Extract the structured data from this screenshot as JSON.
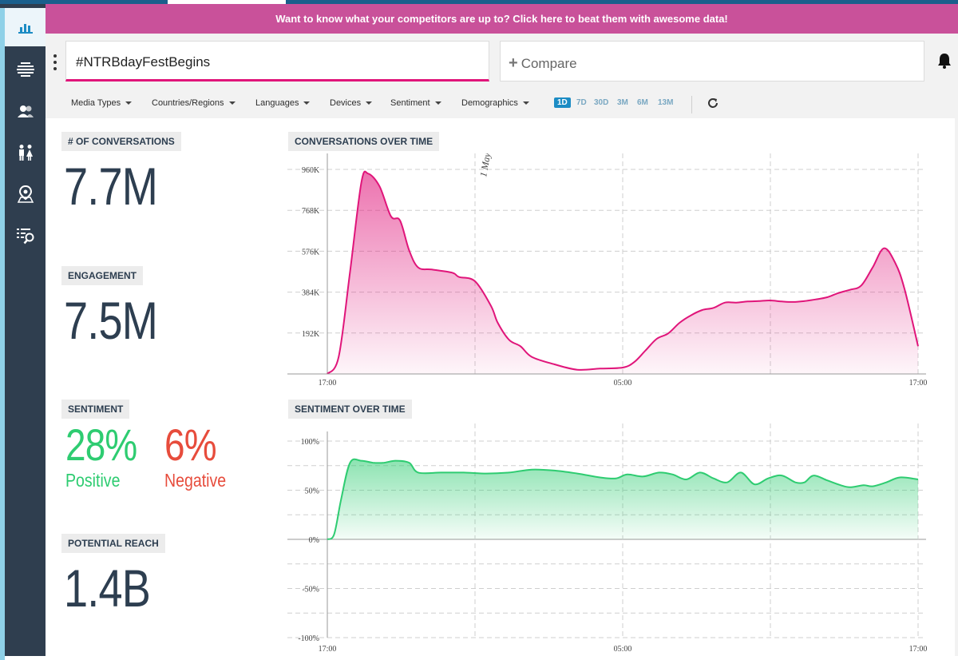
{
  "banner": {
    "text": "Want to know what your competitors are up to? Click here to beat them with awesome data!"
  },
  "search": {
    "query": "#NTRBdayFestBegins",
    "compare_label": "Compare"
  },
  "sidebar": {
    "items": [
      {
        "name": "analytics",
        "icon": "bar-chart-icon",
        "active": true
      },
      {
        "name": "streams",
        "icon": "streams-icon",
        "active": false
      },
      {
        "name": "influencers",
        "icon": "users-icon",
        "active": false
      },
      {
        "name": "demographics",
        "icon": "people-icon",
        "active": false
      },
      {
        "name": "locations",
        "icon": "map-pin-icon",
        "active": false
      },
      {
        "name": "search-list",
        "icon": "list-search-icon",
        "active": false
      }
    ]
  },
  "filters": {
    "media_types": "Media Types",
    "countries": "Countries/Regions",
    "languages": "Languages",
    "devices": "Devices",
    "sentiment": "Sentiment",
    "demographics": "Demographics"
  },
  "ranges": {
    "r1d": "1D",
    "r7d": "7D",
    "r30d": "30D",
    "r3m": "3M",
    "r6m": "6M",
    "r13m": "13M",
    "active": "1D"
  },
  "metrics": {
    "conversations_label": "# OF CONVERSATIONS",
    "conversations_value": "7.7M",
    "engagement_label": "ENGAGEMENT",
    "engagement_value": "7.5M",
    "sentiment_label": "SENTIMENT",
    "positive_value": "28%",
    "positive_label": "Positive",
    "negative_value": "6%",
    "negative_label": "Negative",
    "reach_label": "POTENTIAL REACH",
    "reach_value": "1.4B"
  },
  "colors": {
    "sidebar": "#2f3e4f",
    "banner": "#c9519a",
    "conversations": "#e0157a",
    "positive": "#2ecc71",
    "negative": "#e74c3c",
    "active_range": "#1c8cc4"
  },
  "chart_data": [
    {
      "type": "area",
      "title": "CONVERSATIONS OVER TIME",
      "x_ticks": [
        "17:00",
        "05:00",
        "17:00"
      ],
      "y_ticks": [
        "192K",
        "384K",
        "576K",
        "768K",
        "960K"
      ],
      "ylim": [
        0,
        960
      ],
      "annotation": "1 May",
      "series": [
        {
          "values": [
            [
              0.0,
              0
            ],
            [
              0.5,
              80
            ],
            [
              1.0,
              480
            ],
            [
              1.5,
              900
            ],
            [
              1.8,
              940
            ],
            [
              2.3,
              880
            ],
            [
              2.8,
              740
            ],
            [
              3.2,
              720
            ],
            [
              3.6,
              580
            ],
            [
              4.0,
              500
            ],
            [
              4.6,
              490
            ],
            [
              5.5,
              475
            ],
            [
              5.8,
              455
            ],
            [
              6.5,
              435
            ],
            [
              7.2,
              320
            ],
            [
              7.5,
              240
            ],
            [
              8.0,
              160
            ],
            [
              8.5,
              130
            ],
            [
              9.0,
              80
            ],
            [
              10.0,
              45
            ],
            [
              11.0,
              20
            ],
            [
              12.0,
              25
            ],
            [
              13.0,
              30
            ],
            [
              13.5,
              55
            ],
            [
              14.0,
              110
            ],
            [
              14.5,
              165
            ],
            [
              15.0,
              190
            ],
            [
              15.5,
              240
            ],
            [
              16.0,
              275
            ],
            [
              16.5,
              300
            ],
            [
              17.0,
              310
            ],
            [
              17.5,
              335
            ],
            [
              18.0,
              335
            ],
            [
              18.5,
              340
            ],
            [
              19.0,
              342
            ],
            [
              19.5,
              345
            ],
            [
              20.0,
              340
            ],
            [
              20.5,
              338
            ],
            [
              21.0,
              342
            ],
            [
              21.5,
              350
            ],
            [
              22.0,
              360
            ],
            [
              22.5,
              380
            ],
            [
              23.0,
              395
            ],
            [
              23.5,
              415
            ],
            [
              24.0,
              500
            ],
            [
              24.5,
              590
            ],
            [
              25.0,
              520
            ],
            [
              25.4,
              400
            ],
            [
              26.0,
              130
            ]
          ]
        }
      ]
    },
    {
      "type": "area",
      "title": "SENTIMENT OVER TIME",
      "x_ticks": [
        "17:00",
        "05:00",
        "17:00"
      ],
      "y_ticks": [
        "-100%",
        "-50%",
        "0%",
        "50%",
        "100%"
      ],
      "ylim": [
        -100,
        100
      ],
      "series": [
        {
          "values": [
            [
              0.0,
              0
            ],
            [
              0.3,
              5
            ],
            [
              0.6,
              40
            ],
            [
              1.0,
              78
            ],
            [
              1.5,
              80
            ],
            [
              2.0,
              78
            ],
            [
              2.5,
              78
            ],
            [
              3.0,
              80
            ],
            [
              3.6,
              78
            ],
            [
              4.0,
              68
            ],
            [
              5.0,
              68
            ],
            [
              6.0,
              68
            ],
            [
              7.0,
              67
            ],
            [
              8.0,
              68
            ],
            [
              9.0,
              71
            ],
            [
              10.0,
              70
            ],
            [
              11.0,
              67
            ],
            [
              12.0,
              63
            ],
            [
              12.7,
              62
            ],
            [
              13.2,
              66
            ],
            [
              13.9,
              64
            ],
            [
              14.6,
              68
            ],
            [
              15.2,
              66
            ],
            [
              15.8,
              61
            ],
            [
              16.4,
              68
            ],
            [
              17.0,
              62
            ],
            [
              17.6,
              58
            ],
            [
              18.2,
              68
            ],
            [
              18.8,
              56
            ],
            [
              19.4,
              62
            ],
            [
              20.0,
              65
            ],
            [
              20.6,
              58
            ],
            [
              21.0,
              58
            ],
            [
              21.4,
              65
            ],
            [
              22.0,
              60
            ],
            [
              22.6,
              55
            ],
            [
              23.0,
              53
            ],
            [
              23.6,
              55
            ],
            [
              24.0,
              54
            ],
            [
              24.6,
              58
            ],
            [
              25.2,
              63
            ],
            [
              26.0,
              61
            ]
          ]
        }
      ]
    }
  ]
}
